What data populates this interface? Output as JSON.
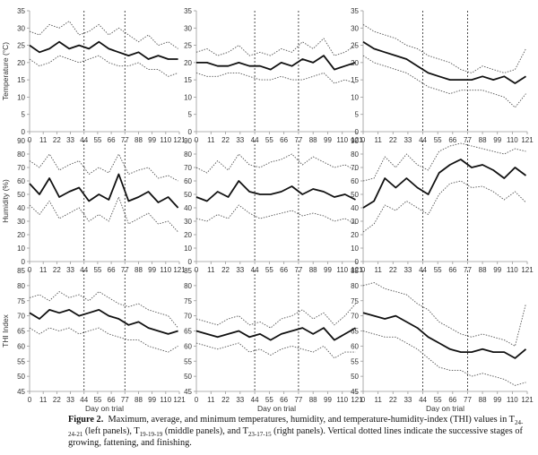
{
  "caption": {
    "label": "Figure 2.",
    "text_1": "Maximum, average, and minimum temperatures, humidity, and temperature-humidity-index (THI) values in T",
    "sub_1": "24-24-21",
    "text_2": " (left panels), T",
    "sub_2": "19-19-19",
    "text_3": " (middle panels), and T",
    "sub_3": "23-17-15",
    "text_4": " (right panels). Vertical dotted lines indicate the successive stages of growing, fattening, and finishing."
  },
  "colors": {
    "average": "#111111",
    "extremes": "#555555",
    "axis": "#9a9a9a",
    "text": "#333333"
  },
  "chart_data": [
    {
      "panel": "temperature-left",
      "type": "line",
      "ylabel": "Temperature (°C)",
      "xlabel": "",
      "ylim": [
        0,
        35
      ],
      "yticks": [
        0,
        5,
        10,
        15,
        20,
        25,
        30,
        35
      ],
      "xticks": [
        0,
        11,
        22,
        33,
        44,
        55,
        66,
        77,
        88,
        99,
        110,
        121
      ],
      "stage_lines": [
        44,
        77
      ],
      "x": [
        0,
        8,
        16,
        24,
        32,
        40,
        48,
        56,
        64,
        72,
        80,
        88,
        96,
        104,
        112,
        120
      ],
      "series": [
        {
          "name": "Maximum",
          "values": [
            29,
            28,
            31,
            30,
            32,
            28,
            29,
            31,
            28,
            30,
            28,
            26,
            28,
            25,
            26,
            24
          ]
        },
        {
          "name": "Average",
          "values": [
            25,
            23,
            24,
            26,
            24,
            25,
            24,
            26,
            24,
            23,
            22,
            23,
            21,
            22,
            21,
            21
          ]
        },
        {
          "name": "Minimum",
          "values": [
            21,
            19,
            20,
            22,
            21,
            20,
            21,
            22,
            20,
            19,
            19,
            20,
            18,
            18,
            16,
            17
          ]
        }
      ]
    },
    {
      "panel": "temperature-middle",
      "type": "line",
      "ylabel": "",
      "xlabel": "",
      "ylim": [
        0,
        35
      ],
      "yticks": [
        0,
        5,
        10,
        15,
        20,
        25,
        30,
        35
      ],
      "xticks": [
        0,
        11,
        22,
        33,
        44,
        55,
        66,
        77,
        88,
        99,
        110,
        121
      ],
      "stage_lines": [
        44,
        77
      ],
      "x": [
        0,
        8,
        16,
        24,
        32,
        40,
        48,
        56,
        64,
        72,
        80,
        88,
        96,
        104,
        112,
        120
      ],
      "series": [
        {
          "name": "Maximum",
          "values": [
            23,
            24,
            22,
            23,
            25,
            22,
            23,
            22,
            24,
            23,
            26,
            24,
            27,
            22,
            23,
            25
          ]
        },
        {
          "name": "Average",
          "values": [
            20,
            20,
            19,
            19,
            20,
            19,
            19,
            18,
            20,
            19,
            21,
            20,
            22,
            18,
            19,
            20
          ]
        },
        {
          "name": "Minimum",
          "values": [
            17,
            16,
            16,
            17,
            17,
            16,
            15,
            15,
            16,
            15,
            15,
            16,
            17,
            14,
            15,
            14
          ]
        }
      ]
    },
    {
      "panel": "temperature-right",
      "type": "line",
      "ylabel": "",
      "xlabel": "",
      "ylim": [
        0,
        35
      ],
      "yticks": [
        0,
        5,
        10,
        15,
        20,
        25,
        30,
        35
      ],
      "xticks": [
        0,
        11,
        22,
        33,
        44,
        55,
        66,
        77,
        88,
        99,
        110,
        121
      ],
      "stage_lines": [
        44,
        77
      ],
      "x": [
        0,
        8,
        16,
        24,
        32,
        40,
        48,
        56,
        64,
        72,
        80,
        88,
        96,
        104,
        112,
        120
      ],
      "series": [
        {
          "name": "Maximum",
          "values": [
            31,
            29,
            28,
            27,
            25,
            24,
            22,
            21,
            20,
            18,
            17,
            19,
            18,
            17,
            18,
            24
          ]
        },
        {
          "name": "Average",
          "values": [
            26,
            24,
            23,
            22,
            21,
            19,
            17,
            16,
            15,
            15,
            15,
            16,
            15,
            16,
            14,
            16
          ]
        },
        {
          "name": "Minimum",
          "values": [
            22,
            20,
            19,
            18,
            17,
            15,
            13,
            12,
            11,
            12,
            12,
            12,
            11,
            10,
            7,
            11
          ]
        }
      ]
    },
    {
      "panel": "humidity-left",
      "type": "line",
      "ylabel": "Humidity (%)",
      "xlabel": "",
      "ylim": [
        0,
        90
      ],
      "yticks": [
        0,
        10,
        20,
        30,
        40,
        50,
        60,
        70,
        80,
        90
      ],
      "xticks": [
        0,
        11,
        22,
        33,
        44,
        55,
        66,
        77,
        88,
        99,
        110,
        121
      ],
      "stage_lines": [
        44,
        77
      ],
      "x": [
        0,
        8,
        16,
        24,
        32,
        40,
        48,
        56,
        64,
        72,
        80,
        88,
        96,
        104,
        112,
        120
      ],
      "series": [
        {
          "name": "Maximum",
          "values": [
            75,
            70,
            80,
            68,
            72,
            75,
            65,
            70,
            66,
            80,
            65,
            68,
            70,
            62,
            64,
            60
          ]
        },
        {
          "name": "Average",
          "values": [
            58,
            50,
            62,
            48,
            52,
            55,
            45,
            50,
            46,
            65,
            45,
            48,
            52,
            44,
            48,
            40
          ]
        },
        {
          "name": "Minimum",
          "values": [
            42,
            35,
            45,
            32,
            36,
            40,
            30,
            35,
            30,
            48,
            28,
            32,
            36,
            28,
            30,
            22
          ]
        }
      ]
    },
    {
      "panel": "humidity-middle",
      "type": "line",
      "ylabel": "",
      "xlabel": "",
      "ylim": [
        0,
        90
      ],
      "yticks": [
        0,
        10,
        20,
        30,
        40,
        50,
        60,
        70,
        80,
        90
      ],
      "xticks": [
        0,
        11,
        22,
        33,
        44,
        55,
        66,
        77,
        88,
        99,
        110,
        121
      ],
      "stage_lines": [
        44,
        77
      ],
      "x": [
        0,
        8,
        16,
        24,
        32,
        40,
        48,
        56,
        64,
        72,
        80,
        88,
        96,
        104,
        112,
        120
      ],
      "series": [
        {
          "name": "Maximum",
          "values": [
            70,
            66,
            75,
            68,
            80,
            72,
            70,
            74,
            76,
            80,
            72,
            78,
            74,
            70,
            72,
            68
          ]
        },
        {
          "name": "Average",
          "values": [
            48,
            45,
            52,
            48,
            60,
            52,
            50,
            50,
            52,
            56,
            50,
            54,
            52,
            48,
            50,
            46
          ]
        },
        {
          "name": "Minimum",
          "values": [
            32,
            30,
            35,
            32,
            42,
            36,
            32,
            34,
            36,
            38,
            34,
            36,
            34,
            30,
            32,
            28
          ]
        }
      ]
    },
    {
      "panel": "humidity-right",
      "type": "line",
      "ylabel": "",
      "xlabel": "",
      "ylim": [
        0,
        90
      ],
      "yticks": [
        0,
        10,
        20,
        30,
        40,
        50,
        60,
        70,
        80,
        90
      ],
      "xticks": [
        0,
        11,
        22,
        33,
        44,
        55,
        66,
        77,
        88,
        99,
        110,
        121
      ],
      "stage_lines": [
        44,
        77
      ],
      "x": [
        0,
        8,
        16,
        24,
        32,
        40,
        48,
        56,
        64,
        72,
        80,
        88,
        96,
        104,
        112,
        120
      ],
      "series": [
        {
          "name": "Maximum",
          "values": [
            60,
            62,
            78,
            70,
            80,
            72,
            68,
            82,
            86,
            88,
            86,
            84,
            82,
            80,
            84,
            82
          ]
        },
        {
          "name": "Average",
          "values": [
            40,
            45,
            62,
            55,
            62,
            55,
            50,
            66,
            72,
            76,
            70,
            72,
            68,
            62,
            70,
            64
          ]
        },
        {
          "name": "Minimum",
          "values": [
            22,
            28,
            42,
            38,
            45,
            40,
            35,
            50,
            58,
            60,
            55,
            56,
            52,
            46,
            52,
            44
          ]
        }
      ]
    },
    {
      "panel": "thi-left",
      "type": "line",
      "ylabel": "THI Index",
      "xlabel": "Day on trial",
      "ylim": [
        45,
        85
      ],
      "yticks": [
        45,
        50,
        55,
        60,
        65,
        70,
        75,
        80,
        85
      ],
      "xticks": [
        0,
        11,
        22,
        33,
        44,
        55,
        66,
        77,
        88,
        99,
        110,
        121
      ],
      "stage_lines": [
        44,
        77
      ],
      "x": [
        0,
        8,
        16,
        24,
        32,
        40,
        48,
        56,
        64,
        72,
        80,
        88,
        96,
        104,
        112,
        120
      ],
      "series": [
        {
          "name": "Maximum",
          "values": [
            76,
            77,
            75,
            78,
            76,
            77,
            75,
            78,
            76,
            74,
            73,
            74,
            72,
            71,
            70,
            66
          ]
        },
        {
          "name": "Average",
          "values": [
            71,
            69,
            72,
            71,
            72,
            70,
            71,
            72,
            70,
            69,
            67,
            68,
            66,
            65,
            64,
            65
          ]
        },
        {
          "name": "Minimum",
          "values": [
            66,
            64,
            66,
            65,
            66,
            64,
            65,
            66,
            64,
            63,
            62,
            62,
            60,
            59,
            58,
            60
          ]
        }
      ]
    },
    {
      "panel": "thi-middle",
      "type": "line",
      "ylabel": "",
      "xlabel": "Day on trial",
      "ylim": [
        45,
        85
      ],
      "yticks": [
        45,
        50,
        55,
        60,
        65,
        70,
        75,
        80,
        85
      ],
      "xticks": [
        0,
        11,
        22,
        33,
        44,
        55,
        66,
        77,
        88,
        99,
        110,
        121
      ],
      "stage_lines": [
        44,
        77
      ],
      "x": [
        0,
        8,
        16,
        24,
        32,
        40,
        48,
        56,
        64,
        72,
        80,
        88,
        96,
        104,
        112,
        120
      ],
      "series": [
        {
          "name": "Maximum",
          "values": [
            69,
            68,
            67,
            69,
            70,
            67,
            68,
            66,
            69,
            70,
            72,
            69,
            71,
            67,
            70,
            74
          ]
        },
        {
          "name": "Average",
          "values": [
            65,
            64,
            63,
            64,
            65,
            63,
            64,
            62,
            64,
            65,
            66,
            64,
            66,
            62,
            64,
            66
          ]
        },
        {
          "name": "Minimum",
          "values": [
            61,
            60,
            59,
            60,
            61,
            58,
            59,
            57,
            59,
            60,
            59,
            58,
            60,
            56,
            58,
            58
          ]
        }
      ]
    },
    {
      "panel": "thi-right",
      "type": "line",
      "ylabel": "",
      "xlabel": "Day on trial",
      "ylim": [
        45,
        85
      ],
      "yticks": [
        45,
        50,
        55,
        60,
        65,
        70,
        75,
        80,
        85
      ],
      "xticks": [
        0,
        11,
        22,
        33,
        44,
        55,
        66,
        77,
        88,
        99,
        110,
        121
      ],
      "stage_lines": [
        44,
        77
      ],
      "x": [
        0,
        8,
        16,
        24,
        32,
        40,
        48,
        56,
        64,
        72,
        80,
        88,
        96,
        104,
        112,
        120
      ],
      "series": [
        {
          "name": "Maximum",
          "values": [
            80,
            81,
            79,
            78,
            77,
            74,
            72,
            68,
            66,
            64,
            63,
            64,
            63,
            62,
            60,
            74
          ]
        },
        {
          "name": "Average",
          "values": [
            71,
            70,
            69,
            70,
            68,
            66,
            63,
            61,
            59,
            58,
            58,
            59,
            58,
            58,
            56,
            59
          ]
        },
        {
          "name": "Minimum",
          "values": [
            65,
            64,
            63,
            63,
            61,
            59,
            56,
            53,
            52,
            52,
            50,
            51,
            50,
            49,
            47,
            48
          ]
        }
      ]
    }
  ]
}
